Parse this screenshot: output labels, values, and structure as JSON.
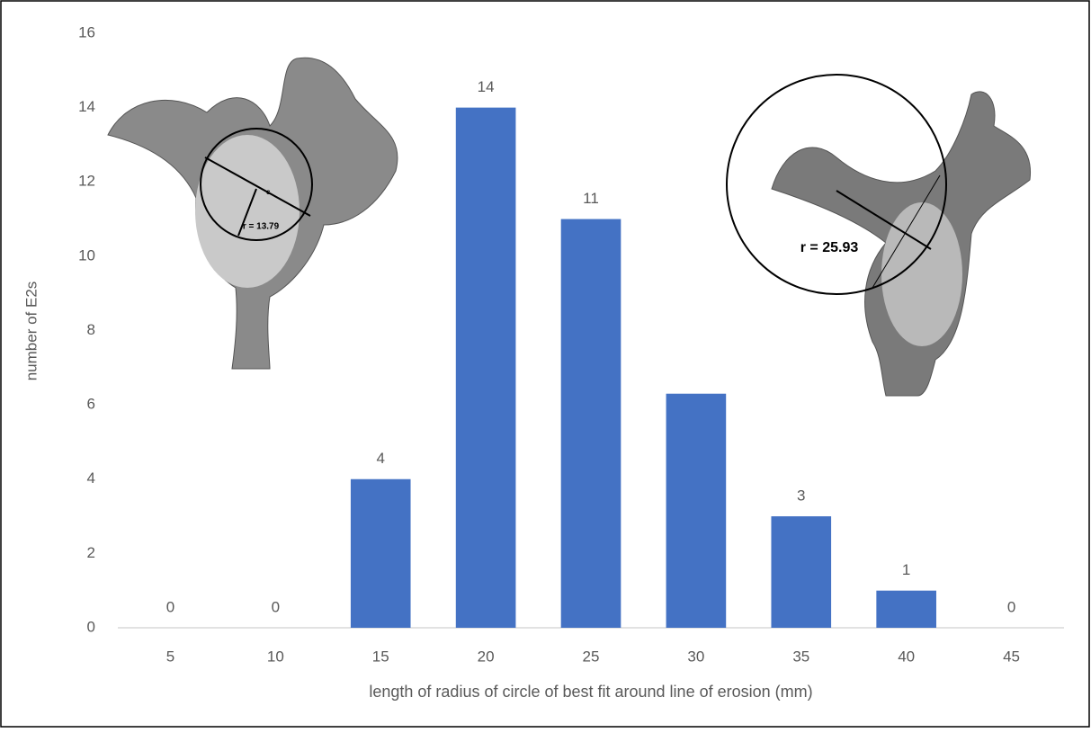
{
  "chart_data": {
    "type": "bar",
    "x_label": "length of radius of circle of best fit around line of erosion (mm)",
    "y_label": "number of E2s",
    "categories": [
      "5",
      "10",
      "15",
      "20",
      "25",
      "30",
      "35",
      "40",
      "45"
    ],
    "values": [
      0,
      0,
      4,
      14,
      11,
      6.3,
      3,
      1,
      0
    ],
    "value_labels": [
      "0",
      "0",
      "4",
      "14",
      "11",
      null,
      "3",
      "1",
      "0"
    ],
    "color": "#4472c4",
    "ylim": [
      0,
      16
    ],
    "yticks": [
      0,
      2,
      4,
      6,
      8,
      10,
      12,
      14,
      16
    ],
    "grid": false,
    "annotations": [
      "r = 13.79",
      "c",
      "r = 25.93"
    ]
  }
}
